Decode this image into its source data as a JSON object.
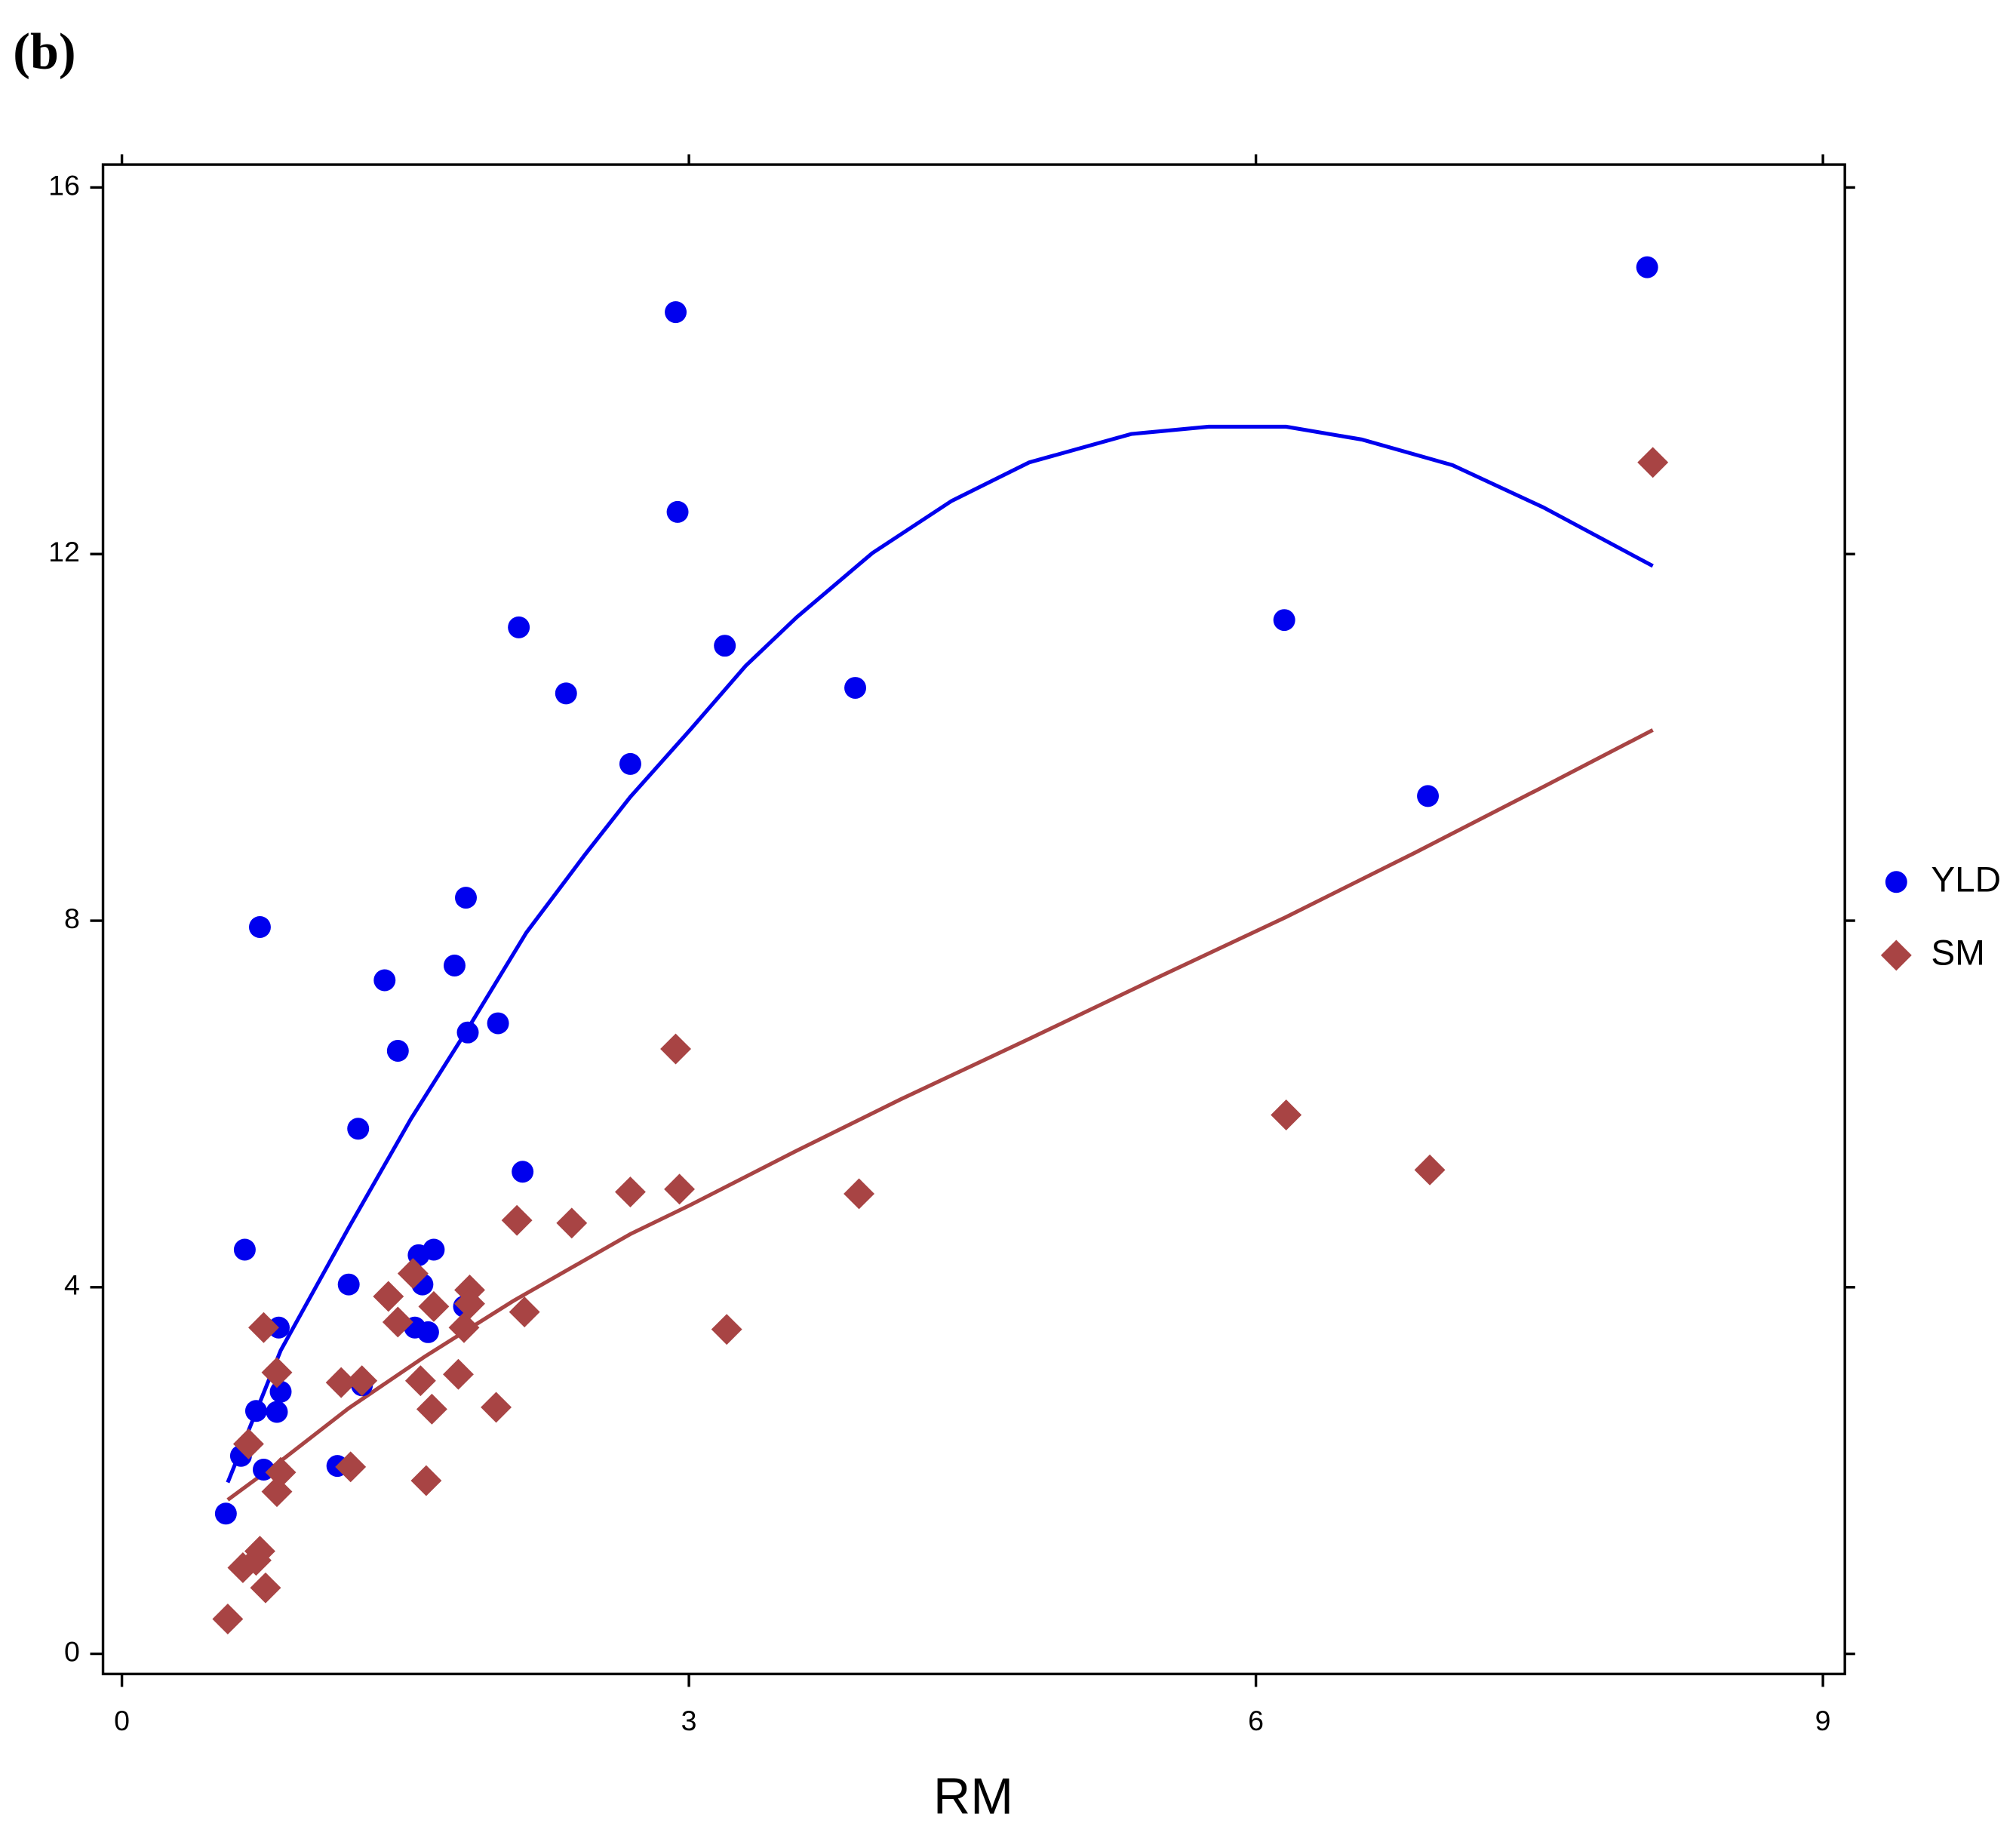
{
  "panel_label": "(b)",
  "chart_data": {
    "type": "scatter",
    "x_label": "RM",
    "xlim": [
      -0.1,
      9.116
    ],
    "ylim": [
      -0.22,
      16.25
    ],
    "xticks": [
      0,
      3,
      6,
      9
    ],
    "yticks": [
      0,
      4,
      8,
      12,
      16
    ],
    "legend": "right",
    "series": [
      {
        "name": "YLD",
        "color": "#0000ee",
        "marker": "circle",
        "x": [
          0.55,
          0.63,
          0.65,
          0.71,
          0.73,
          0.75,
          0.82,
          0.83,
          0.84,
          1.14,
          1.2,
          1.25,
          1.27,
          1.39,
          1.46,
          1.55,
          1.57,
          1.59,
          1.62,
          1.65,
          1.76,
          1.82,
          1.81,
          1.83,
          1.99,
          2.1,
          2.12,
          2.35,
          2.69,
          2.93,
          2.94,
          3.19,
          3.88,
          6.15,
          6.91,
          8.07
        ],
        "values": [
          1.53,
          2.16,
          4.41,
          2.65,
          7.93,
          2.01,
          2.64,
          3.56,
          2.86,
          2.05,
          4.03,
          5.73,
          2.93,
          7.35,
          6.58,
          3.56,
          4.35,
          4.03,
          3.51,
          4.41,
          7.51,
          8.25,
          3.79,
          6.78,
          6.88,
          11.2,
          5.26,
          10.48,
          9.71,
          14.64,
          12.46,
          11.0,
          10.54,
          11.28,
          9.36,
          15.13
        ]
      },
      {
        "name": "SM",
        "color": "#a84444",
        "marker": "diamond",
        "x": [
          0.56,
          0.64,
          0.67,
          0.71,
          0.73,
          0.75,
          0.76,
          0.82,
          0.82,
          0.84,
          1.16,
          1.21,
          1.27,
          1.41,
          1.46,
          1.54,
          1.58,
          1.61,
          1.64,
          1.65,
          1.78,
          1.81,
          1.84,
          1.84,
          1.98,
          2.09,
          2.13,
          2.38,
          2.69,
          2.93,
          2.95,
          3.2,
          3.9,
          6.16,
          6.92,
          8.1
        ],
        "values": [
          0.38,
          0.94,
          2.29,
          1.02,
          1.12,
          3.56,
          0.72,
          3.07,
          1.77,
          1.98,
          2.96,
          2.04,
          2.98,
          3.9,
          3.62,
          4.15,
          2.98,
          1.89,
          2.67,
          3.79,
          3.05,
          3.56,
          3.97,
          3.82,
          2.69,
          4.73,
          3.73,
          4.7,
          5.04,
          6.6,
          5.07,
          3.54,
          5.02,
          5.88,
          5.28,
          13.0
        ]
      }
    ],
    "trendlines": [
      {
        "color": "#0000ee",
        "x": [
          0.56,
          0.84,
          1.2,
          1.53,
          1.83,
          2.14,
          2.45,
          2.69,
          3.01,
          3.3,
          3.57,
          3.97,
          4.39,
          4.8,
          5.34,
          5.75,
          6.16,
          6.56,
          7.04,
          7.52,
          8.1
        ],
        "values": [
          1.87,
          3.31,
          4.65,
          5.84,
          6.82,
          7.87,
          8.72,
          9.35,
          10.09,
          10.78,
          11.31,
          12.01,
          12.58,
          13.0,
          13.31,
          13.39,
          13.39,
          13.25,
          12.97,
          12.51,
          11.87
        ]
      },
      {
        "color": "#a84444",
        "x": [
          0.56,
          0.85,
          1.2,
          1.6,
          2.07,
          2.69,
          3.01,
          3.57,
          4.12,
          4.8,
          5.48,
          6.16,
          6.84,
          7.52,
          8.1
        ],
        "values": [
          1.68,
          2.12,
          2.68,
          3.24,
          3.85,
          4.58,
          4.9,
          5.49,
          6.05,
          6.71,
          7.38,
          8.04,
          8.74,
          9.46,
          10.08
        ]
      }
    ]
  }
}
